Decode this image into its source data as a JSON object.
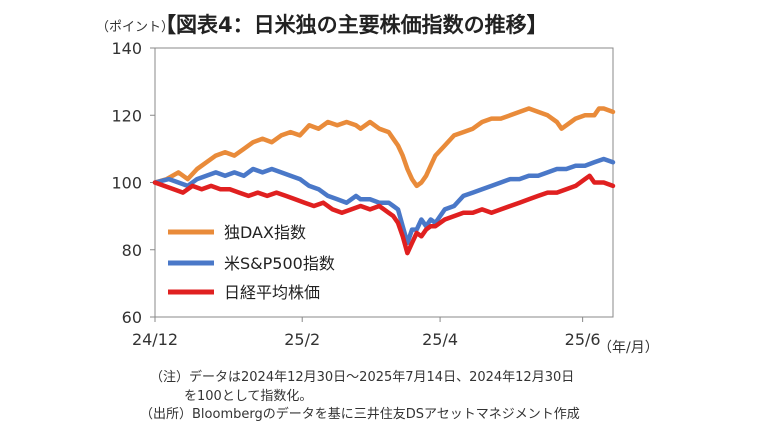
{
  "title": "【図表4：日米独の主要株価指数の推移】",
  "notes": [
    "（注）データは2024年12月30日～2025年7月14日、2024年12月30日",
    "を100として指数化。",
    "（出所）Bloombergのデータを基に三井住友DSアセットマネジメント作成"
  ],
  "chart_data": {
    "type": "line",
    "ylabel": "（ポイント）",
    "xlabel": "（年/月）",
    "ylim": [
      60,
      140
    ],
    "yticks": [
      60,
      80,
      100,
      120,
      140
    ],
    "xlim": [
      0,
      196
    ],
    "xticks": [
      {
        "label": "24/12",
        "x": 0
      },
      {
        "label": "25/2",
        "x": 63
      },
      {
        "label": "25/4",
        "x": 122
      },
      {
        "label": "25/6",
        "x": 183
      }
    ],
    "grid": false,
    "legend": "bottom-left",
    "series": [
      {
        "name": "独DAX指数",
        "color": "#E98B3A",
        "points": [
          [
            0,
            100
          ],
          [
            5,
            101
          ],
          [
            10,
            103
          ],
          [
            14,
            101
          ],
          [
            18,
            104
          ],
          [
            22,
            106
          ],
          [
            26,
            108
          ],
          [
            30,
            109
          ],
          [
            34,
            108
          ],
          [
            38,
            110
          ],
          [
            42,
            112
          ],
          [
            46,
            113
          ],
          [
            50,
            112
          ],
          [
            54,
            114
          ],
          [
            58,
            115
          ],
          [
            62,
            114
          ],
          [
            66,
            117
          ],
          [
            70,
            116
          ],
          [
            74,
            118
          ],
          [
            78,
            117
          ],
          [
            82,
            118
          ],
          [
            86,
            117
          ],
          [
            88,
            116
          ],
          [
            92,
            118
          ],
          [
            96,
            116
          ],
          [
            100,
            115
          ],
          [
            102,
            113
          ],
          [
            104,
            111
          ],
          [
            106,
            108
          ],
          [
            108,
            104
          ],
          [
            110,
            101
          ],
          [
            112,
            99
          ],
          [
            114,
            100
          ],
          [
            116,
            102
          ],
          [
            118,
            105
          ],
          [
            120,
            108
          ],
          [
            124,
            111
          ],
          [
            128,
            114
          ],
          [
            132,
            115
          ],
          [
            136,
            116
          ],
          [
            140,
            118
          ],
          [
            144,
            119
          ],
          [
            148,
            119
          ],
          [
            152,
            120
          ],
          [
            156,
            121
          ],
          [
            160,
            122
          ],
          [
            164,
            121
          ],
          [
            168,
            120
          ],
          [
            172,
            118
          ],
          [
            174,
            116
          ],
          [
            176,
            117
          ],
          [
            178,
            118
          ],
          [
            180,
            119
          ],
          [
            184,
            120
          ],
          [
            188,
            120
          ],
          [
            190,
            122
          ],
          [
            192,
            122
          ],
          [
            196,
            121
          ]
        ]
      },
      {
        "name": "米S&P500指数",
        "color": "#4A78C8",
        "points": [
          [
            0,
            100
          ],
          [
            6,
            101
          ],
          [
            10,
            100
          ],
          [
            14,
            99
          ],
          [
            18,
            101
          ],
          [
            22,
            102
          ],
          [
            26,
            103
          ],
          [
            30,
            102
          ],
          [
            34,
            103
          ],
          [
            38,
            102
          ],
          [
            42,
            104
          ],
          [
            46,
            103
          ],
          [
            50,
            104
          ],
          [
            54,
            103
          ],
          [
            58,
            102
          ],
          [
            62,
            101
          ],
          [
            66,
            99
          ],
          [
            70,
            98
          ],
          [
            74,
            96
          ],
          [
            78,
            95
          ],
          [
            82,
            94
          ],
          [
            86,
            96
          ],
          [
            88,
            95
          ],
          [
            92,
            95
          ],
          [
            96,
            94
          ],
          [
            100,
            94
          ],
          [
            102,
            93
          ],
          [
            104,
            92
          ],
          [
            106,
            87
          ],
          [
            108,
            82
          ],
          [
            110,
            86
          ],
          [
            112,
            86
          ],
          [
            114,
            89
          ],
          [
            116,
            87
          ],
          [
            118,
            89
          ],
          [
            120,
            88
          ],
          [
            124,
            92
          ],
          [
            128,
            93
          ],
          [
            132,
            96
          ],
          [
            136,
            97
          ],
          [
            140,
            98
          ],
          [
            144,
            99
          ],
          [
            148,
            100
          ],
          [
            152,
            101
          ],
          [
            156,
            101
          ],
          [
            160,
            102
          ],
          [
            164,
            102
          ],
          [
            168,
            103
          ],
          [
            172,
            104
          ],
          [
            176,
            104
          ],
          [
            180,
            105
          ],
          [
            184,
            105
          ],
          [
            188,
            106
          ],
          [
            192,
            107
          ],
          [
            196,
            106
          ]
        ]
      },
      {
        "name": "日経平均株価",
        "color": "#E02020",
        "points": [
          [
            0,
            100
          ],
          [
            4,
            99
          ],
          [
            8,
            98
          ],
          [
            12,
            97
          ],
          [
            16,
            99
          ],
          [
            20,
            98
          ],
          [
            24,
            99
          ],
          [
            28,
            98
          ],
          [
            32,
            98
          ],
          [
            36,
            97
          ],
          [
            40,
            96
          ],
          [
            44,
            97
          ],
          [
            48,
            96
          ],
          [
            52,
            97
          ],
          [
            56,
            96
          ],
          [
            60,
            95
          ],
          [
            64,
            94
          ],
          [
            68,
            93
          ],
          [
            72,
            94
          ],
          [
            76,
            92
          ],
          [
            80,
            91
          ],
          [
            84,
            92
          ],
          [
            88,
            93
          ],
          [
            92,
            92
          ],
          [
            96,
            93
          ],
          [
            100,
            91
          ],
          [
            102,
            90
          ],
          [
            104,
            88
          ],
          [
            106,
            84
          ],
          [
            108,
            79
          ],
          [
            110,
            82
          ],
          [
            112,
            85
          ],
          [
            114,
            84
          ],
          [
            116,
            86
          ],
          [
            118,
            87
          ],
          [
            120,
            87
          ],
          [
            124,
            89
          ],
          [
            128,
            90
          ],
          [
            132,
            91
          ],
          [
            136,
            91
          ],
          [
            140,
            92
          ],
          [
            144,
            91
          ],
          [
            148,
            92
          ],
          [
            152,
            93
          ],
          [
            156,
            94
          ],
          [
            160,
            95
          ],
          [
            164,
            96
          ],
          [
            168,
            97
          ],
          [
            172,
            97
          ],
          [
            176,
            98
          ],
          [
            180,
            99
          ],
          [
            184,
            101
          ],
          [
            186,
            102
          ],
          [
            188,
            100
          ],
          [
            192,
            100
          ],
          [
            196,
            99
          ]
        ]
      }
    ]
  }
}
